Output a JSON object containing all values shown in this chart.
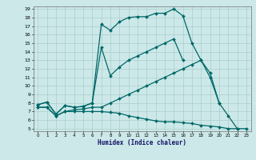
{
  "xlabel": "Humidex (Indice chaleur)",
  "bg_color": "#cce8e8",
  "grid_color": "#aacece",
  "line_color": "#006868",
  "ylim": [
    5,
    19
  ],
  "xlim": [
    0,
    23
  ],
  "yticks": [
    5,
    6,
    7,
    8,
    9,
    10,
    11,
    12,
    13,
    14,
    15,
    16,
    17,
    18,
    19
  ],
  "xticks": [
    0,
    1,
    2,
    3,
    4,
    5,
    6,
    7,
    8,
    9,
    10,
    11,
    12,
    13,
    14,
    15,
    16,
    17,
    18,
    19,
    20,
    21,
    22,
    23
  ],
  "series": [
    {
      "x": [
        0,
        1,
        2,
        3,
        4,
        5,
        6,
        7,
        8,
        9,
        10,
        11,
        12,
        13,
        14,
        15,
        16,
        17,
        18,
        19,
        20,
        21,
        22
      ],
      "y": [
        7.8,
        8.1,
        6.7,
        7.7,
        7.5,
        7.6,
        8.0,
        17.2,
        16.5,
        17.5,
        18.0,
        18.1,
        18.1,
        18.5,
        18.5,
        19.0,
        18.2,
        15.0,
        13.0,
        11.5,
        8.0,
        6.5,
        5.0
      ]
    },
    {
      "x": [
        0,
        1,
        2,
        3,
        4,
        5,
        6,
        7,
        8,
        9,
        10,
        11,
        12,
        13,
        14,
        15,
        16
      ],
      "y": [
        7.8,
        8.1,
        6.7,
        7.7,
        7.5,
        7.6,
        8.0,
        14.5,
        11.2,
        12.2,
        13.0,
        13.5,
        14.0,
        14.5,
        15.0,
        15.5,
        13.0
      ]
    },
    {
      "x": [
        0,
        1,
        2,
        3,
        4,
        5,
        6,
        7,
        8,
        9,
        10,
        11,
        12,
        13,
        14,
        15,
        16,
        17,
        18,
        19,
        20
      ],
      "y": [
        7.5,
        7.5,
        6.5,
        7.0,
        7.2,
        7.3,
        7.5,
        7.5,
        8.0,
        8.5,
        9.0,
        9.5,
        10.0,
        10.5,
        11.0,
        11.5,
        12.0,
        12.5,
        13.0,
        11.0,
        8.0
      ]
    },
    {
      "x": [
        0,
        1,
        2,
        3,
        4,
        5,
        6,
        7,
        8,
        9,
        10,
        11,
        12,
        13,
        14,
        15,
        16,
        17,
        18,
        19,
        20,
        21,
        22,
        23
      ],
      "y": [
        7.5,
        7.5,
        6.5,
        7.0,
        7.0,
        7.0,
        7.0,
        7.0,
        6.9,
        6.8,
        6.5,
        6.3,
        6.1,
        5.9,
        5.8,
        5.8,
        5.7,
        5.6,
        5.4,
        5.3,
        5.2,
        5.0,
        5.0,
        5.0
      ]
    }
  ]
}
